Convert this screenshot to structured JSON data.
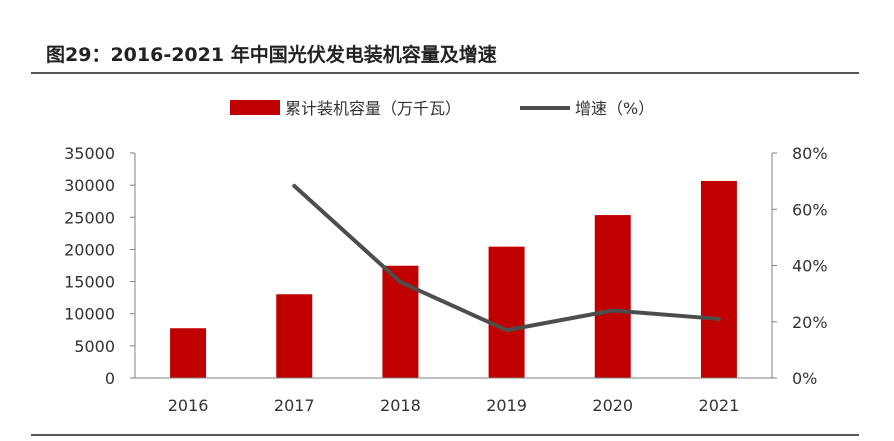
{
  "title": "图29：2016-2021 年中国光伏发电装机容量及增速",
  "colors": {
    "bar": "#c00000",
    "line": "#4d4d4d",
    "axis": "#808080"
  },
  "chart_data": {
    "type": "bar",
    "categories": [
      "2016",
      "2017",
      "2018",
      "2019",
      "2020",
      "2021"
    ],
    "series": [
      {
        "name": "累计装机容量（万千瓦）",
        "type": "bar",
        "axis": "left",
        "values": [
          7742,
          13025,
          17463,
          20430,
          25343,
          30656
        ]
      },
      {
        "name": "增速（%）",
        "type": "line",
        "axis": "right",
        "values": [
          null,
          68.3,
          34.1,
          17.0,
          24.0,
          21.0
        ]
      }
    ],
    "y_left": {
      "ylim": [
        0,
        35000
      ],
      "ticks": [
        0,
        5000,
        10000,
        15000,
        20000,
        25000,
        30000,
        35000
      ],
      "tick_labels": [
        "0",
        "5000",
        "10000",
        "15000",
        "20000",
        "25000",
        "30000",
        "35000"
      ]
    },
    "y_right": {
      "ylim": [
        0,
        80
      ],
      "ticks": [
        0,
        20,
        40,
        60,
        80
      ],
      "tick_labels": [
        "0%",
        "20%",
        "40%",
        "60%",
        "80%"
      ]
    },
    "legend": "top-center",
    "grid": false
  }
}
